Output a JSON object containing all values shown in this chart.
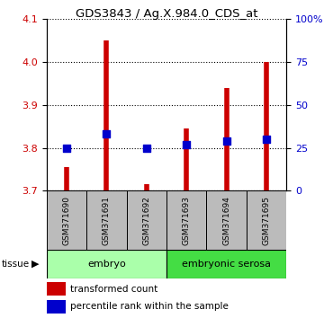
{
  "title": "GDS3843 / Ag.X.984.0_CDS_at",
  "samples": [
    "GSM371690",
    "GSM371691",
    "GSM371692",
    "GSM371693",
    "GSM371694",
    "GSM371695"
  ],
  "transformed_count": [
    3.755,
    4.05,
    3.715,
    3.845,
    3.94,
    4.0
  ],
  "percentile_rank": [
    25,
    33,
    25,
    27,
    29,
    30
  ],
  "tissue_groups": [
    {
      "label": "embryo",
      "samples": [
        0,
        1,
        2
      ],
      "color": "#aaffaa"
    },
    {
      "label": "embryonic serosa",
      "samples": [
        3,
        4,
        5
      ],
      "color": "#44dd44"
    }
  ],
  "ylim_left": [
    3.7,
    4.1
  ],
  "ylim_right": [
    0,
    100
  ],
  "yticks_left": [
    3.7,
    3.8,
    3.9,
    4.0,
    4.1
  ],
  "yticks_right": [
    0,
    25,
    50,
    75,
    100
  ],
  "ytick_labels_right": [
    "0",
    "25",
    "50",
    "75",
    "100%"
  ],
  "bar_color": "#CC0000",
  "dot_color": "#0000CC",
  "dot_size": 35,
  "baseline": 3.7,
  "grid_color": "#000000",
  "sample_bg": "#BBBBBB",
  "left_color": "#CC0000",
  "right_color": "#0000CC",
  "tissue_label": "tissue",
  "legend_items": [
    "transformed count",
    "percentile rank within the sample"
  ],
  "legend_colors": [
    "#CC0000",
    "#0000CC"
  ]
}
